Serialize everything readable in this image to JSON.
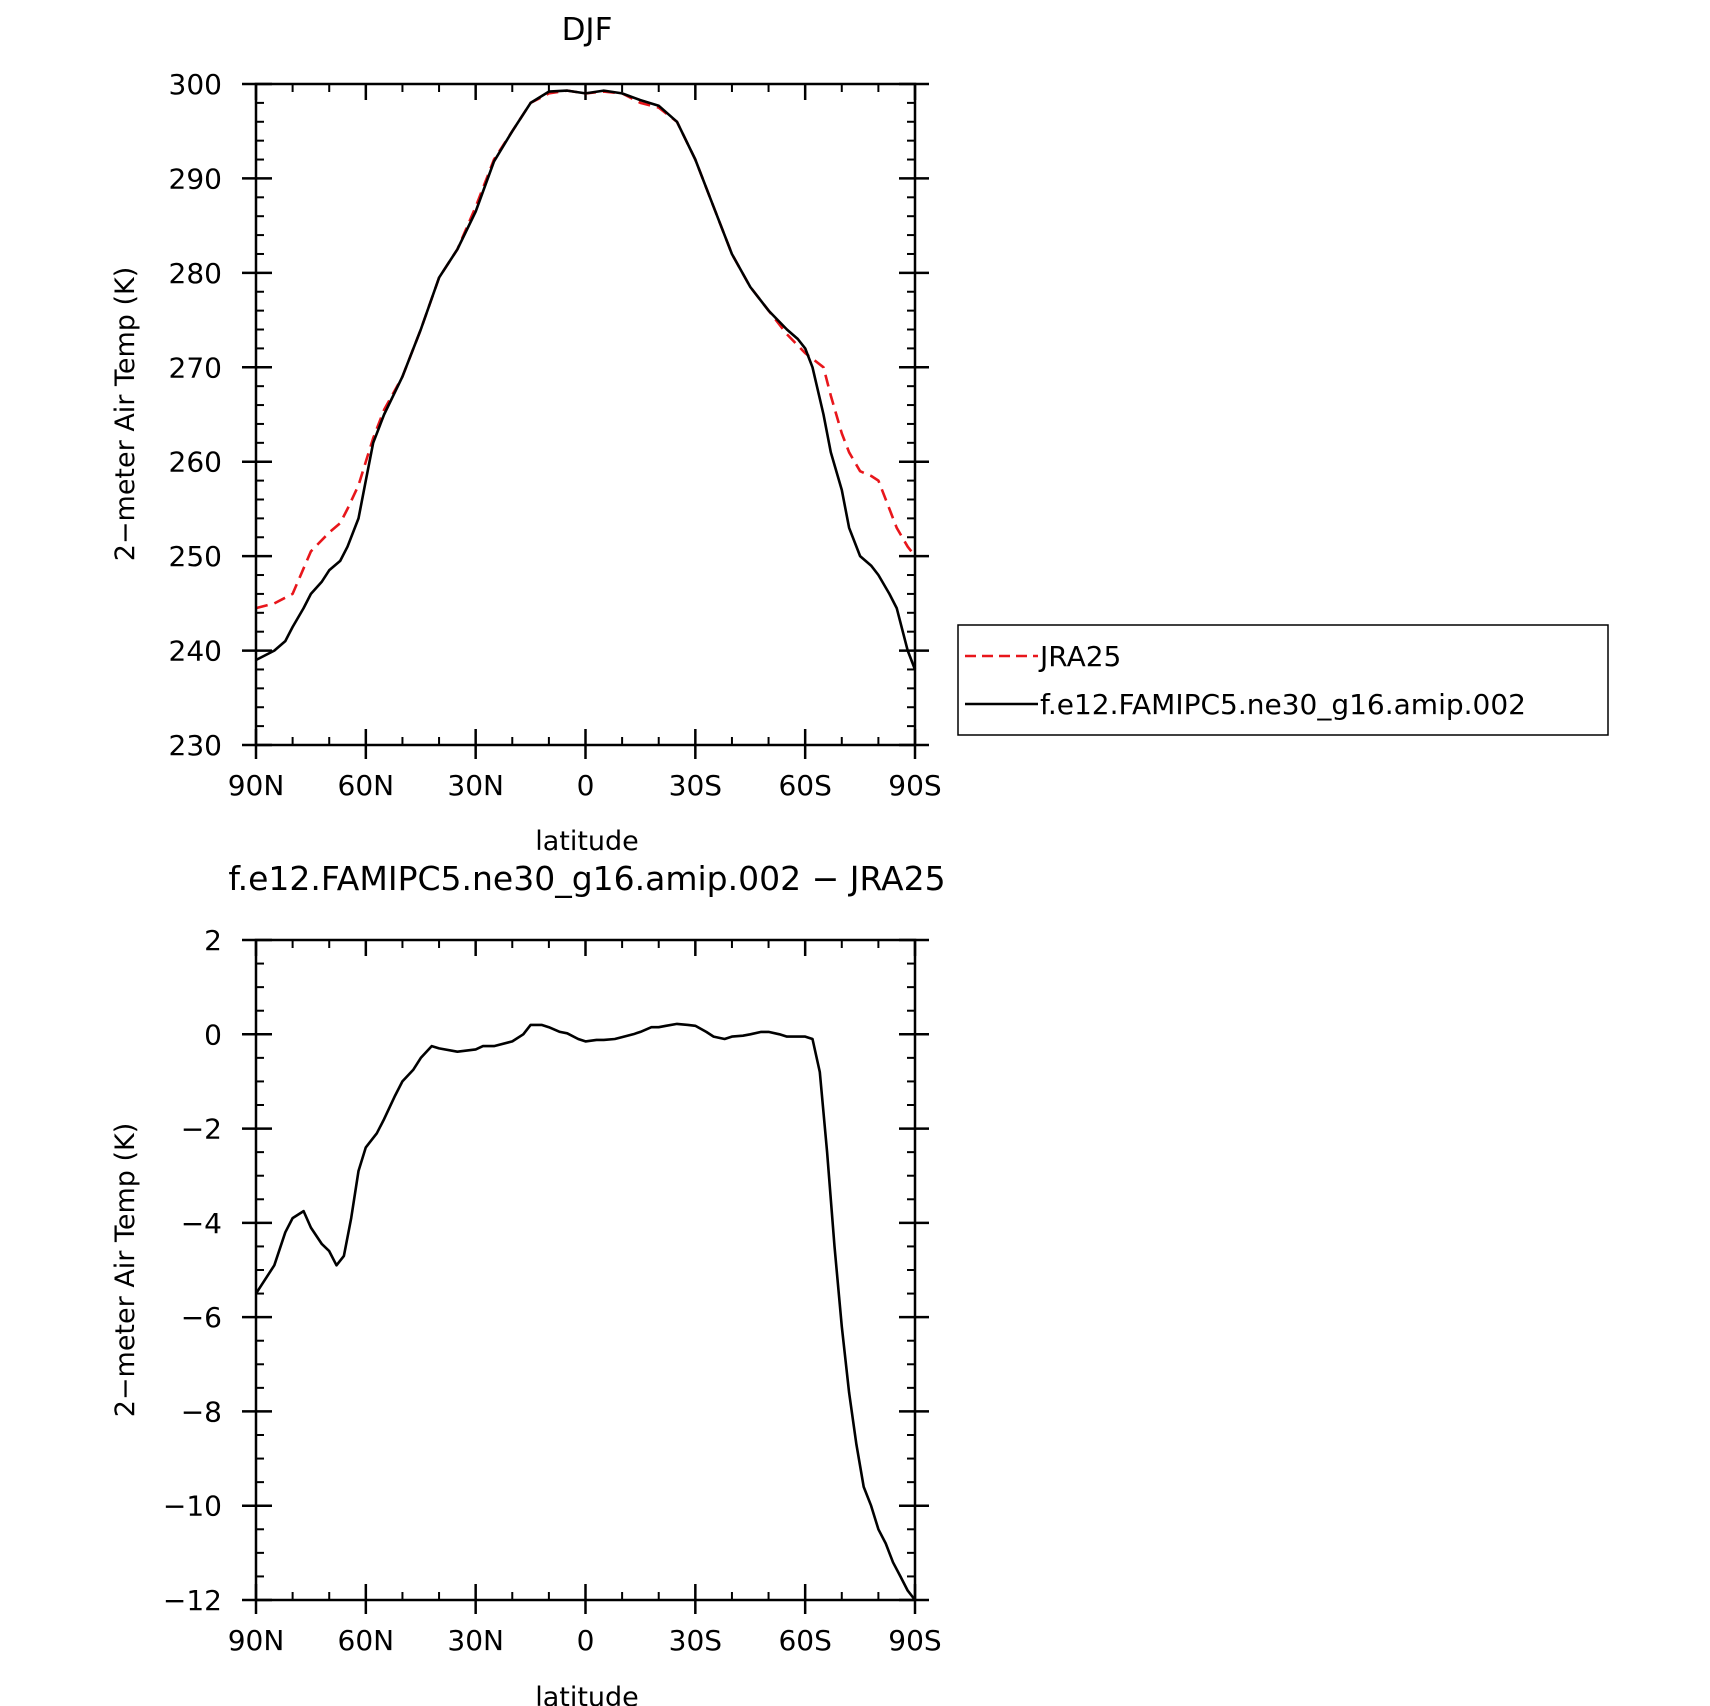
{
  "chart_data": [
    {
      "type": "line",
      "title": "DJF",
      "xlabel": "latitude",
      "ylabel": "2−meter Air Temp (K)",
      "xlim": [
        -90,
        90
      ],
      "ylim": [
        230,
        300
      ],
      "x_ticks": [
        -90,
        -60,
        -30,
        0,
        30,
        60,
        90
      ],
      "x_tick_labels": [
        "90N",
        "60N",
        "30N",
        "0",
        "30S",
        "60S",
        "90S"
      ],
      "y_ticks": [
        230,
        240,
        250,
        260,
        270,
        280,
        290,
        300
      ],
      "y_tick_labels": [
        "230",
        "240",
        "250",
        "260",
        "270",
        "280",
        "290",
        "300"
      ],
      "legend": {
        "placement": "right",
        "entries": [
          "JRA25",
          "f.e12.FAMIPC5.ne30_g16.amip.002"
        ]
      },
      "series": [
        {
          "name": "JRA25",
          "color": "#e8161b",
          "dash": "dashed",
          "x": [
            -90,
            -85,
            -80,
            -75,
            -70,
            -67,
            -65,
            -62,
            -60,
            -58,
            -55,
            -50,
            -45,
            -40,
            -35,
            -30,
            -25,
            -20,
            -15,
            -10,
            -5,
            0,
            5,
            10,
            15,
            20,
            25,
            30,
            35,
            40,
            45,
            50,
            55,
            60,
            65,
            67,
            70,
            72,
            75,
            78,
            80,
            83,
            85,
            88,
            90
          ],
          "values": [
            244.5,
            245,
            246,
            250.5,
            252.5,
            253.5,
            255,
            257.5,
            260,
            262.5,
            265.5,
            269,
            274,
            279.5,
            282.5,
            287,
            292,
            295,
            298,
            299,
            299.3,
            299,
            299.2,
            299,
            298,
            297.5,
            296,
            292,
            287,
            282,
            278.5,
            276,
            273.5,
            271.5,
            270,
            267,
            263,
            261,
            259,
            258.5,
            258,
            255,
            253,
            251,
            250
          ]
        },
        {
          "name": "f.e12.FAMIPC5.ne30_g16.amip.002",
          "color": "#000000",
          "dash": "solid",
          "x": [
            -90,
            -85,
            -82,
            -80,
            -77,
            -75,
            -72,
            -70,
            -67,
            -65,
            -62,
            -60,
            -58,
            -55,
            -50,
            -45,
            -40,
            -35,
            -30,
            -25,
            -20,
            -15,
            -10,
            -5,
            0,
            5,
            10,
            15,
            20,
            25,
            30,
            35,
            40,
            45,
            50,
            55,
            58,
            60,
            62,
            65,
            67,
            70,
            72,
            75,
            78,
            80,
            83,
            85,
            88,
            90
          ],
          "values": [
            239,
            240,
            241,
            242.5,
            244.5,
            246,
            247.3,
            248.5,
            249.5,
            251,
            254,
            258,
            262,
            265,
            269,
            274,
            279.5,
            282.5,
            286.5,
            291.8,
            295,
            298,
            299.2,
            299.3,
            299,
            299.3,
            299,
            298.3,
            297.7,
            296,
            292,
            287,
            282,
            278.5,
            276,
            274,
            273,
            272,
            270,
            265,
            261,
            257,
            253,
            250,
            249,
            248,
            246,
            244.5,
            240,
            238
          ]
        }
      ]
    },
    {
      "type": "line",
      "title": "f.e12.FAMIPC5.ne30_g16.amip.002 − JRA25",
      "xlabel": "latitude",
      "ylabel": "2−meter Air Temp (K)",
      "xlim": [
        -90,
        90
      ],
      "ylim": [
        -12,
        2
      ],
      "x_ticks": [
        -90,
        -60,
        -30,
        0,
        30,
        60,
        90
      ],
      "x_tick_labels": [
        "90N",
        "60N",
        "30N",
        "0",
        "30S",
        "60S",
        "90S"
      ],
      "y_ticks": [
        -12,
        -10,
        -8,
        -6,
        -4,
        -2,
        0,
        2
      ],
      "y_tick_labels": [
        "−12",
        "−10",
        "−8",
        "−6",
        "−4",
        "−2",
        "0",
        "2"
      ],
      "series": [
        {
          "color": "#000000",
          "dash": "solid",
          "x": [
            -90,
            -85,
            -82,
            -80,
            -77,
            -75,
            -72,
            -70,
            -68,
            -66,
            -64,
            -62,
            -60,
            -57,
            -55,
            -52,
            -50,
            -47,
            -45,
            -42,
            -40,
            -35,
            -30,
            -28,
            -25,
            -20,
            -17,
            -15,
            -12,
            -10,
            -7,
            -5,
            -2,
            0,
            3,
            5,
            8,
            10,
            13,
            15,
            18,
            20,
            22,
            25,
            28,
            30,
            33,
            35,
            38,
            40,
            43,
            45,
            48,
            50,
            53,
            55,
            58,
            60,
            62,
            64,
            66,
            68,
            70,
            72,
            74,
            76,
            78,
            80,
            82,
            84,
            86,
            88,
            90
          ],
          "values": [
            -5.5,
            -4.9,
            -4.2,
            -3.9,
            -3.75,
            -4.1,
            -4.45,
            -4.6,
            -4.9,
            -4.7,
            -3.9,
            -2.9,
            -2.4,
            -2.1,
            -1.8,
            -1.3,
            -1.0,
            -0.75,
            -0.5,
            -0.25,
            -0.3,
            -0.37,
            -0.32,
            -0.25,
            -0.25,
            -0.15,
            0.0,
            0.2,
            0.2,
            0.15,
            0.05,
            0.02,
            -0.1,
            -0.15,
            -0.12,
            -0.12,
            -0.1,
            -0.06,
            0.0,
            0.05,
            0.15,
            0.15,
            0.18,
            0.22,
            0.2,
            0.18,
            0.05,
            -0.05,
            -0.1,
            -0.05,
            -0.03,
            0.0,
            0.05,
            0.05,
            0.0,
            -0.05,
            -0.05,
            -0.05,
            -0.1,
            -0.8,
            -2.5,
            -4.5,
            -6.2,
            -7.6,
            -8.7,
            -9.6,
            -10.0,
            -10.5,
            -10.8,
            -11.2,
            -11.5,
            -11.8,
            -12.0
          ]
        }
      ]
    }
  ]
}
